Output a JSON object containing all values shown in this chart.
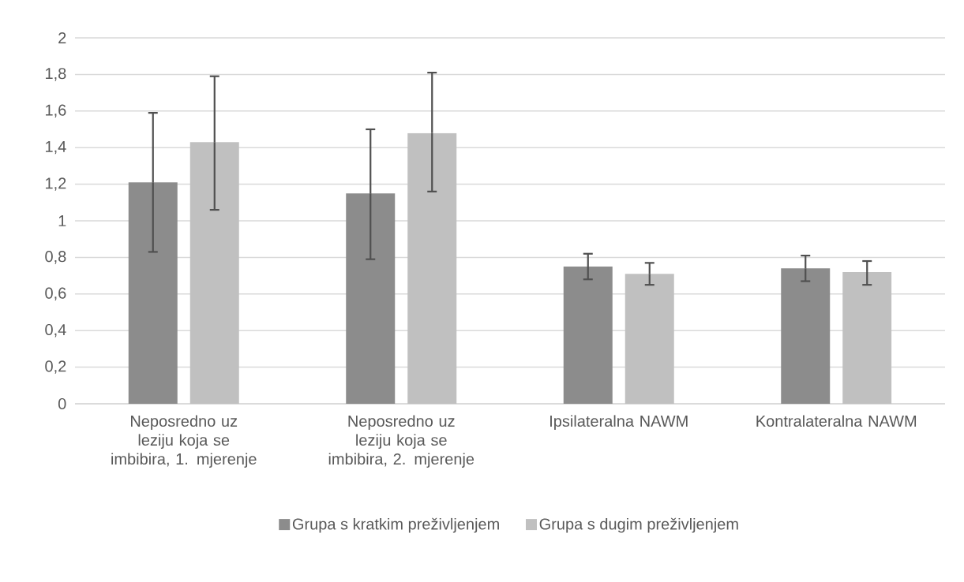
{
  "chart_data": {
    "type": "bar",
    "categories": [
      "Neposredno uz leziju koja se imbibira, 1. mjerenje",
      "Neposredno uz leziju koja se imbibira, 2. mjerenje",
      "Ipsilateralna NAWM",
      "Kontralateralna NAWM"
    ],
    "series": [
      {
        "name": "Grupa s kratkim preživljenjem",
        "color": "#8c8c8c",
        "values": [
          1.21,
          1.15,
          0.75,
          0.74
        ],
        "errors": [
          [
            0.83,
            1.59
          ],
          [
            0.79,
            1.5
          ],
          [
            0.68,
            0.82
          ],
          [
            0.67,
            0.81
          ]
        ]
      },
      {
        "name": "Grupa s dugim preživljenjem",
        "color": "#c0c0c0",
        "values": [
          1.43,
          1.48,
          0.71,
          0.72
        ],
        "errors": [
          [
            1.06,
            1.79
          ],
          [
            1.16,
            1.81
          ],
          [
            0.65,
            0.77
          ],
          [
            0.65,
            0.78
          ]
        ]
      }
    ],
    "ylim": [
      0,
      2
    ],
    "yticks": [
      0,
      {
        "value": 0.2,
        "label": "0,2"
      },
      {
        "value": 0.4,
        "label": "0,4"
      },
      {
        "value": 0.6,
        "label": "0,6"
      },
      {
        "value": 0.8,
        "label": "0,8"
      },
      1,
      {
        "value": 1.2,
        "label": "1,2"
      },
      {
        "value": 1.4,
        "label": "1,4"
      },
      {
        "value": 1.6,
        "label": "1,6"
      },
      {
        "value": 1.8,
        "label": "1,8"
      },
      2
    ],
    "grid": "y",
    "legend": "bottom"
  }
}
